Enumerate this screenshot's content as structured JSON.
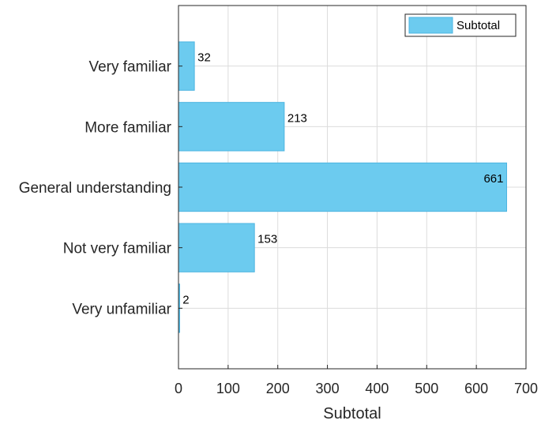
{
  "chart_data": {
    "type": "bar",
    "orientation": "horizontal",
    "categories": [
      "Very familiar",
      "More familiar",
      "General understanding",
      "Not very familiar",
      "Very unfamiliar"
    ],
    "series": [
      {
        "name": "Subtotal",
        "values": [
          32,
          213,
          661,
          153,
          2
        ],
        "color": "#6ccbef"
      }
    ],
    "xlabel": "Subtotal",
    "ylabel": "",
    "xlim": [
      0,
      700
    ],
    "xticks": [
      0,
      100,
      200,
      300,
      400,
      500,
      600,
      700
    ],
    "grid": true,
    "legend_position": "top-right",
    "bar_edge_color": "#4cb4e0",
    "grid_color": "#dcdcdc",
    "axis_color": "#262626"
  }
}
